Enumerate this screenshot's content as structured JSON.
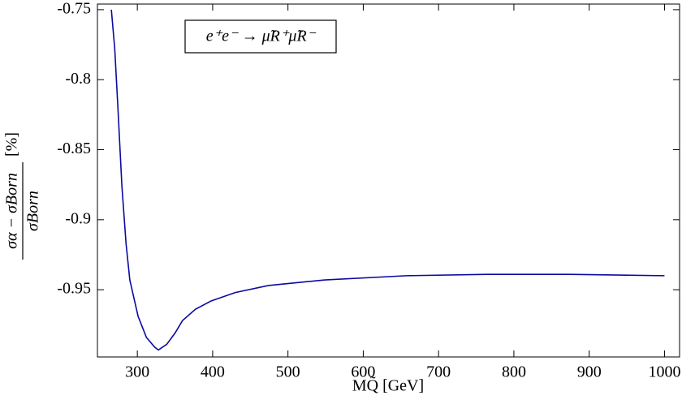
{
  "chart_data": {
    "type": "line",
    "annotation": "e⁺e⁻ → μ̃R⁺μ̃R⁻",
    "xlabel": "MQ̃ [GeV]",
    "ylabel_numerator": "σα − σBorn",
    "ylabel_denominator": "σBorn",
    "ylabel_unit": "[%]",
    "xlim": [
      247,
      1020
    ],
    "xticks": [
      300,
      400,
      500,
      600,
      700,
      800,
      900,
      1000
    ],
    "ylim": [
      -0.998,
      -0.746
    ],
    "yticks": [
      -0.75,
      -0.8,
      -0.85,
      -0.9,
      -0.95
    ],
    "series": [
      {
        "color": "#0a0aa0",
        "x": [
          265.5,
          270,
          274,
          279.5,
          285,
          290,
          301,
          312,
          323,
          328,
          339,
          350,
          360,
          377,
          398,
          430,
          474,
          549,
          657,
          765,
          873,
          1000
        ],
        "values": [
          -0.75,
          -0.778,
          -0.818,
          -0.876,
          -0.917,
          -0.943,
          -0.969,
          -0.984,
          -0.991,
          -0.993,
          -0.989,
          -0.981,
          -0.972,
          -0.964,
          -0.958,
          -0.952,
          -0.947,
          -0.943,
          -0.94,
          -0.939,
          -0.939,
          -0.94
        ]
      }
    ]
  }
}
